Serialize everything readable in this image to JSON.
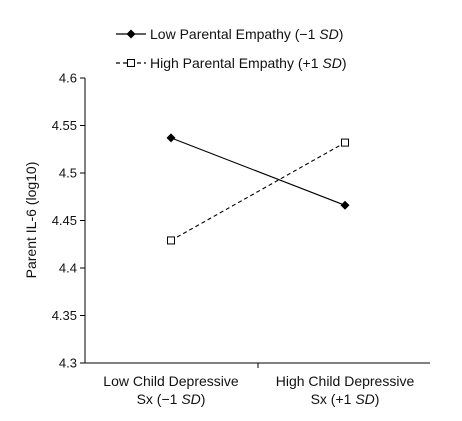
{
  "chart_data": {
    "type": "line",
    "title": "",
    "xlabel": "",
    "ylabel": "Parent IL-6 (log10)",
    "ylim": [
      4.3,
      4.6
    ],
    "yticks": [
      "4.3",
      "4.35",
      "4.4",
      "4.45",
      "4.5",
      "4.55",
      "4.6"
    ],
    "categories": [
      {
        "line1": "Low Child Depressive",
        "line2_prefix": "Sx (−1 ",
        "line2_italic": "SD",
        "line2_suffix": ")"
      },
      {
        "line1": "High Child Depressive",
        "line2_prefix": "Sx (+1 ",
        "line2_italic": "SD",
        "line2_suffix": ")"
      }
    ],
    "legend_position": "top-center",
    "grid": false,
    "series": [
      {
        "name_prefix": "Low Parental Empathy (−1 ",
        "name_italic": "SD",
        "name_suffix": ")",
        "marker": "filled-diamond",
        "line_style": "solid",
        "color": "#000000",
        "values": [
          4.537,
          4.466
        ]
      },
      {
        "name_prefix": "High Parental Empathy (+1 ",
        "name_italic": "SD",
        "name_suffix": ")",
        "marker": "open-square",
        "line_style": "dashed",
        "color": "#000000",
        "values": [
          4.429,
          4.532
        ]
      }
    ]
  }
}
